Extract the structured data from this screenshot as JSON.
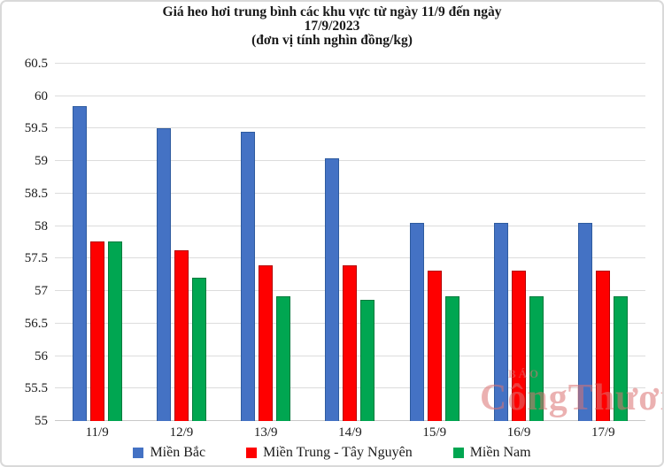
{
  "title": {
    "line1": "Giá heo hơi trung bình các khu vực từ ngày 11/9 đến ngày",
    "line2": "17/9/2023",
    "line3": "(đơn vị tính nghìn đồng/kg)"
  },
  "watermark": {
    "small": "BÁO",
    "large": "CôngThương"
  },
  "colors": {
    "grid": "#dcdcdc",
    "axis_text": "#1a1a1a",
    "watermark": "#dc7272"
  },
  "chart_data": {
    "type": "bar",
    "title": "Giá heo hơi trung bình các khu vực từ ngày 11/9 đến ngày 17/9/2023",
    "subtitle": "(đơn vị tính nghìn đồng/kg)",
    "xlabel": "",
    "ylabel": "",
    "ylim": [
      55,
      60.5
    ],
    "ytick_step": 0.5,
    "yticks": [
      60.5,
      60,
      59.5,
      59,
      58.5,
      58,
      57.5,
      57,
      56.5,
      56,
      55.5,
      55
    ],
    "grid": true,
    "legend_position": "bottom",
    "categories": [
      "11/9",
      "12/9",
      "13/9",
      "14/9",
      "15/9",
      "16/9",
      "17/9"
    ],
    "series": [
      {
        "id": "mien-bac",
        "name": "Miền Bắc",
        "color": "#4472C4",
        "border_color": "#2e5b9f",
        "values": [
          59.85,
          59.5,
          59.45,
          59.05,
          58.05,
          58.05,
          58.05
        ]
      },
      {
        "id": "mien-trung-tay-nguyen",
        "name": "Miền Trung - Tây Nguyên",
        "color": "#FE0000",
        "border_color": "#b30000",
        "values": [
          57.77,
          57.63,
          57.4,
          57.4,
          57.32,
          57.32,
          57.32
        ]
      },
      {
        "id": "mien-nam",
        "name": "Miền Nam",
        "color": "#00A651",
        "border_color": "#017b3d",
        "values": [
          57.77,
          57.2,
          56.92,
          56.87,
          56.92,
          56.92,
          56.92
        ]
      }
    ]
  }
}
